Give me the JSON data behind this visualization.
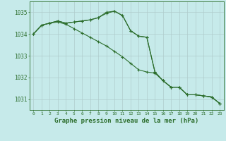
{
  "background_color": "#c6eaea",
  "grid_color": "#b0cccc",
  "line_color": "#2d6e2d",
  "xlabel": "Graphe pression niveau de la mer (hPa)",
  "ylim": [
    1030.5,
    1035.5
  ],
  "xlim": [
    -0.5,
    23.5
  ],
  "yticks": [
    1031,
    1032,
    1033,
    1034,
    1035
  ],
  "xticks": [
    0,
    1,
    2,
    3,
    4,
    5,
    6,
    7,
    8,
    9,
    10,
    11,
    12,
    13,
    14,
    15,
    16,
    17,
    18,
    19,
    20,
    21,
    22,
    23
  ],
  "series": [
    {
      "x": [
        0,
        1,
        2,
        3,
        4,
        5,
        6,
        7,
        8,
        9,
        10,
        11,
        12,
        13,
        14,
        15,
        16,
        17,
        18,
        19,
        20,
        21,
        22,
        23
      ],
      "y": [
        1034.0,
        1034.4,
        1034.5,
        1034.6,
        1034.5,
        1034.55,
        1034.6,
        1034.65,
        1034.75,
        1035.0,
        1035.05,
        1034.85,
        1034.15,
        1033.9,
        1033.85,
        1032.25,
        1031.85,
        1031.55,
        1031.55,
        1031.2,
        1031.2,
        1031.15,
        1031.1,
        1030.8
      ]
    },
    {
      "x": [
        0,
        1,
        2,
        3,
        4,
        5,
        6,
        7,
        8,
        9,
        10,
        11,
        12,
        13,
        14,
        15,
        16,
        17,
        18,
        19,
        20,
        21,
        22,
        23
      ],
      "y": [
        1034.0,
        1034.4,
        1034.5,
        1034.55,
        1034.45,
        1034.25,
        1034.05,
        1033.85,
        1033.65,
        1033.45,
        1033.2,
        1032.95,
        1032.65,
        1032.35,
        1032.25,
        1032.2,
        1031.85,
        1031.55,
        1031.55,
        1031.2,
        1031.2,
        1031.15,
        1031.1,
        1030.8
      ]
    },
    {
      "x": [
        0,
        1,
        2,
        3,
        4,
        5,
        6,
        7,
        8,
        9,
        10,
        11,
        12,
        13,
        14,
        15,
        16,
        17,
        18,
        19,
        20,
        21,
        22,
        23
      ],
      "y": [
        1034.0,
        1034.4,
        1034.5,
        1034.6,
        1034.5,
        1034.55,
        1034.6,
        1034.65,
        1034.75,
        1034.95,
        1035.05,
        1034.85,
        1034.15,
        1033.9,
        1033.85,
        1032.25,
        1031.85,
        1031.55,
        1031.55,
        1031.2,
        1031.2,
        1031.15,
        1031.1,
        1030.8
      ]
    }
  ]
}
